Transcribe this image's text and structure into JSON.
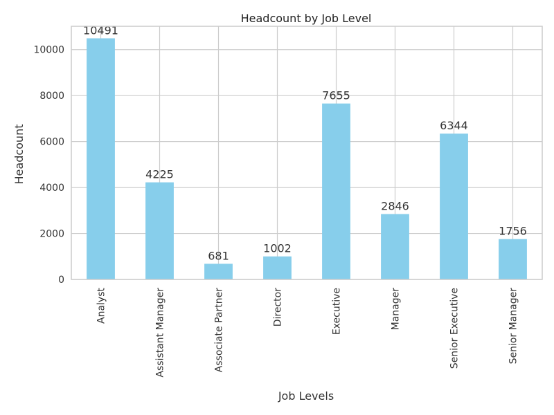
{
  "chart_data": {
    "type": "bar",
    "title": "Headcount by Job Level",
    "xlabel": "Job Levels",
    "ylabel": "Headcount",
    "categories": [
      "Analyst",
      "Assistant Manager",
      "Associate Partner",
      "Director",
      "Executive",
      "Manager",
      "Senior Executive",
      "Senior Manager"
    ],
    "values": [
      10491,
      4225,
      681,
      1002,
      7655,
      2846,
      6344,
      1756
    ],
    "ylim": [
      0,
      11015
    ],
    "yticks": [
      0,
      2000,
      4000,
      6000,
      8000,
      10000
    ],
    "grid": true,
    "bar_color": "#87CEEB",
    "data_labels": true
  }
}
